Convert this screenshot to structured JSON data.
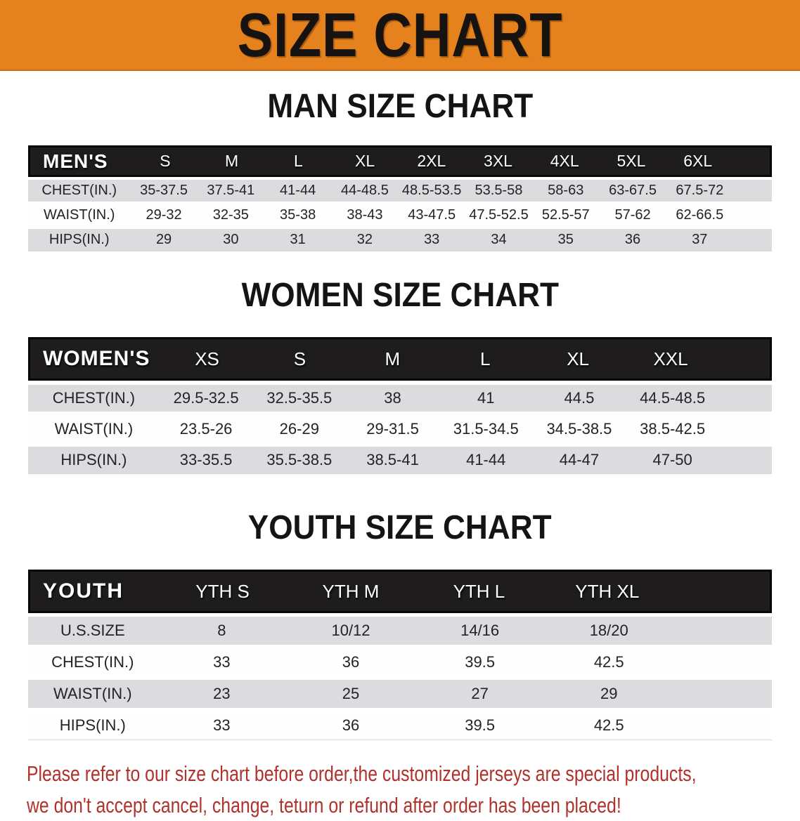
{
  "headings": {
    "main": "SIZE CHART",
    "men": "MAN SIZE CHART",
    "women": "WOMEN SIZE CHART",
    "youth": "YOUTH SIZE CHART"
  },
  "colors": {
    "banner_orange": "#e6821d",
    "header_black": "#1e1c1c",
    "row_gray": "#dcdcde",
    "notice_red": "#b1312b"
  },
  "tables": {
    "men": {
      "label": "MEN'S",
      "sizes": [
        "S",
        "M",
        "L",
        "XL",
        "2XL",
        "3XL",
        "4XL",
        "5XL",
        "6XL"
      ],
      "rows": [
        {
          "label": "CHEST(IN.)",
          "values": [
            "35-37.5",
            "37.5-41",
            "41-44",
            "44-48.5",
            "48.5-53.5",
            "53.5-58",
            "58-63",
            "63-67.5",
            "67.5-72"
          ]
        },
        {
          "label": "WAIST(IN.)",
          "values": [
            "29-32",
            "32-35",
            "35-38",
            "38-43",
            "43-47.5",
            "47.5-52.5",
            "52.5-57",
            "57-62",
            "62-66.5"
          ]
        },
        {
          "label": "HIPS(IN.)",
          "values": [
            "29",
            "30",
            "31",
            "32",
            "33",
            "34",
            "35",
            "36",
            "37"
          ]
        }
      ]
    },
    "women": {
      "label": "WOMEN'S",
      "sizes": [
        "XS",
        "S",
        "M",
        "L",
        "XL",
        "XXL"
      ],
      "rows": [
        {
          "label": "CHEST(IN.)",
          "values": [
            "29.5-32.5",
            "32.5-35.5",
            "38",
            "41",
            "44.5",
            "44.5-48.5"
          ]
        },
        {
          "label": "WAIST(IN.)",
          "values": [
            "23.5-26",
            "26-29",
            "29-31.5",
            "31.5-34.5",
            "34.5-38.5",
            "38.5-42.5"
          ]
        },
        {
          "label": "HIPS(IN.)",
          "values": [
            "33-35.5",
            "35.5-38.5",
            "38.5-41",
            "41-44",
            "44-47",
            "47-50"
          ]
        }
      ]
    },
    "youth": {
      "label": "YOUTH",
      "sizes": [
        "YTH S",
        "YTH M",
        "YTH L",
        "YTH XL"
      ],
      "rows": [
        {
          "label": "U.S.SIZE",
          "values": [
            "8",
            "10/12",
            "14/16",
            "18/20"
          ]
        },
        {
          "label": "CHEST(IN.)",
          "values": [
            "33",
            "36",
            "39.5",
            "42.5"
          ]
        },
        {
          "label": "WAIST(IN.)",
          "values": [
            "23",
            "25",
            "27",
            "29"
          ]
        },
        {
          "label": "HIPS(IN.)",
          "values": [
            "33",
            "36",
            "39.5",
            "42.5"
          ]
        }
      ]
    }
  },
  "notice": {
    "line1": "Please refer to our size chart before order,the customized jerseys are special products,",
    "line2": "we don't accept cancel, change, teturn or refund after order has been placed!"
  }
}
